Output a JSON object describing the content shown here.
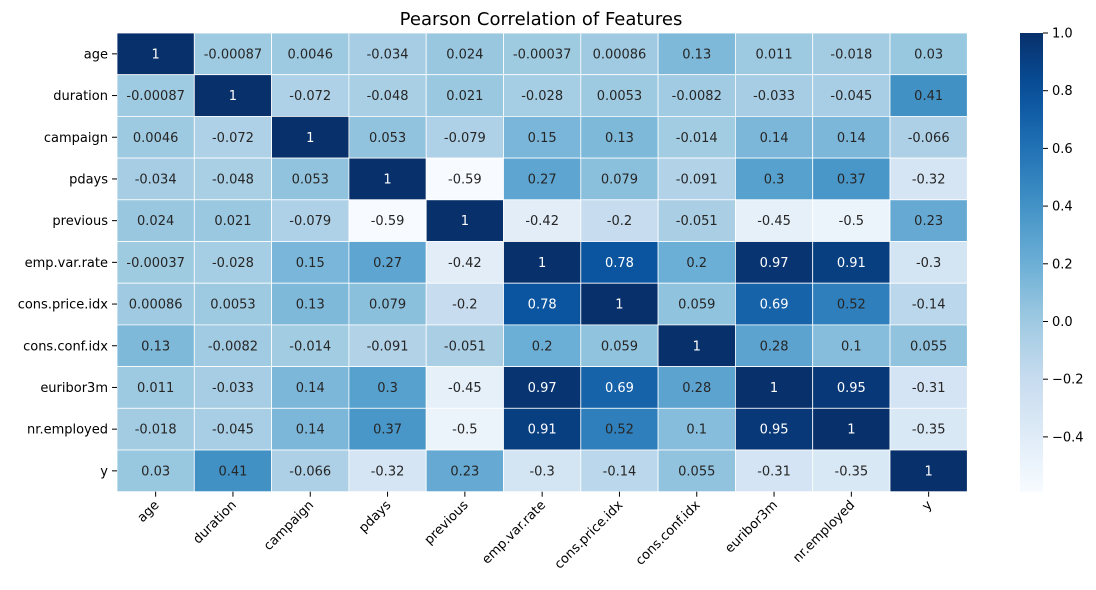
{
  "chart_data": {
    "type": "heatmap",
    "title": "Pearson Correlation of Features",
    "x_labels": [
      "age",
      "duration",
      "campaign",
      "pdays",
      "previous",
      "emp.var.rate",
      "cons.price.idx",
      "cons.conf.idx",
      "euribor3m",
      "nr.employed",
      "y"
    ],
    "y_labels": [
      "age",
      "duration",
      "campaign",
      "pdays",
      "previous",
      "emp.var.rate",
      "cons.price.idx",
      "cons.conf.idx",
      "euribor3m",
      "nr.employed",
      "y"
    ],
    "values": [
      [
        "1",
        "-0.00087",
        "0.0046",
        "-0.034",
        "0.024",
        "-0.00037",
        "0.00086",
        "0.13",
        "0.011",
        "-0.018",
        "0.03"
      ],
      [
        "-0.00087",
        "1",
        "-0.072",
        "-0.048",
        "0.021",
        "-0.028",
        "0.0053",
        "-0.0082",
        "-0.033",
        "-0.045",
        "0.41"
      ],
      [
        "0.0046",
        "-0.072",
        "1",
        "0.053",
        "-0.079",
        "0.15",
        "0.13",
        "-0.014",
        "0.14",
        "0.14",
        "-0.066"
      ],
      [
        "-0.034",
        "-0.048",
        "0.053",
        "1",
        "-0.59",
        "0.27",
        "0.079",
        "-0.091",
        "0.3",
        "0.37",
        "-0.32"
      ],
      [
        "0.024",
        "0.021",
        "-0.079",
        "-0.59",
        "1",
        "-0.42",
        "-0.2",
        "-0.051",
        "-0.45",
        "-0.5",
        "0.23"
      ],
      [
        "-0.00037",
        "-0.028",
        "0.15",
        "0.27",
        "-0.42",
        "1",
        "0.78",
        "0.2",
        "0.97",
        "0.91",
        "-0.3"
      ],
      [
        "0.00086",
        "0.0053",
        "0.13",
        "0.079",
        "-0.2",
        "0.78",
        "1",
        "0.059",
        "0.69",
        "0.52",
        "-0.14"
      ],
      [
        "0.13",
        "-0.0082",
        "-0.014",
        "-0.091",
        "-0.051",
        "0.2",
        "0.059",
        "1",
        "0.28",
        "0.1",
        "0.055"
      ],
      [
        "0.011",
        "-0.033",
        "0.14",
        "0.3",
        "-0.45",
        "0.97",
        "0.69",
        "0.28",
        "1",
        "0.95",
        "-0.31"
      ],
      [
        "-0.018",
        "-0.045",
        "0.14",
        "0.37",
        "-0.5",
        "0.91",
        "0.52",
        "0.1",
        "0.95",
        "1",
        "-0.35"
      ],
      [
        "0.03",
        "0.41",
        "-0.066",
        "-0.32",
        "0.23",
        "-0.3",
        "-0.14",
        "0.055",
        "-0.31",
        "-0.35",
        "1"
      ]
    ],
    "colormap": "Blues",
    "color_range": [
      -0.59,
      1
    ],
    "colorbar_ticks": [
      "1.0",
      "0.8",
      "0.6",
      "0.4",
      "0.2",
      "0.0",
      "−0.2",
      "−0.4"
    ],
    "colorbar_tick_values": [
      1.0,
      0.8,
      0.6,
      0.4,
      0.2,
      0.0,
      -0.2,
      -0.4
    ],
    "annotations": true,
    "cell_border_color": "#ffffff",
    "legend": "colorbar-right"
  }
}
